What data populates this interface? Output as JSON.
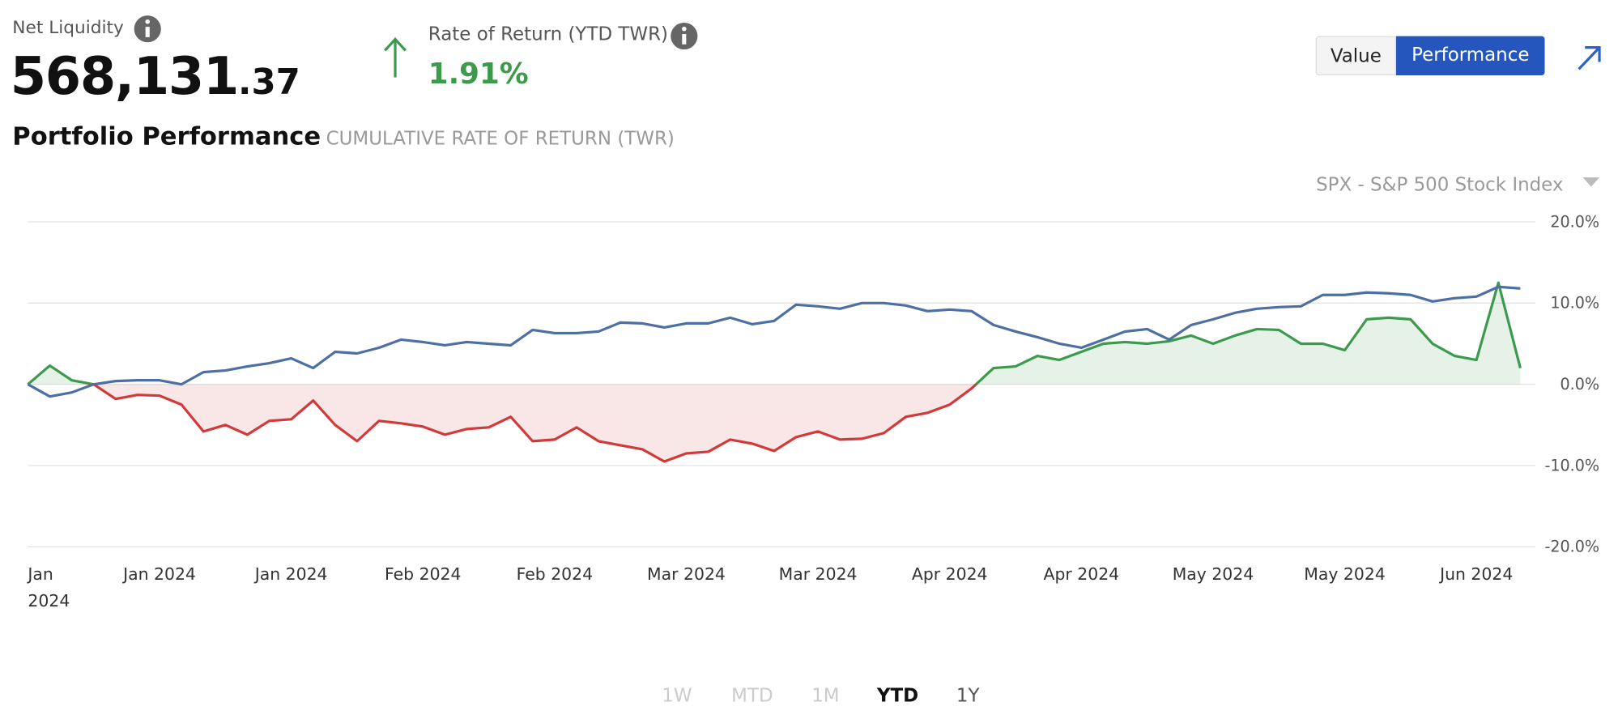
{
  "header": {
    "net_liquidity_label": "Net Liquidity",
    "net_liquidity_whole": "568,131",
    "net_liquidity_cents": ".37",
    "return_label": "Rate of Return (YTD TWR)",
    "return_value": "1.91%",
    "toggle": [
      "Value",
      "Performance"
    ],
    "toggle_active": 1,
    "title": "Portfolio Performance",
    "subtitle": "CUMULATIVE RATE OF RETURN (TWR)"
  },
  "range_tabs": {
    "items": [
      "1W",
      "MTD",
      "1M",
      "YTD",
      "1Y"
    ],
    "active": 3,
    "disabled": [
      0,
      1,
      2
    ]
  },
  "chart_data": {
    "type": "line",
    "categories": [
      "Jan 2024",
      null,
      null,
      null,
      null,
      null,
      "Jan 2024",
      null,
      null,
      null,
      null,
      null,
      "Jan 2024",
      null,
      null,
      null,
      null,
      null,
      "Feb 2024",
      null,
      null,
      null,
      null,
      null,
      "Feb 2024",
      null,
      null,
      null,
      null,
      null,
      "Mar 2024",
      null,
      null,
      null,
      null,
      null,
      "Mar 2024",
      null,
      null,
      null,
      null,
      null,
      "Apr 2024",
      null,
      null,
      null,
      null,
      null,
      "Apr 2024",
      null,
      null,
      null,
      null,
      null,
      "May 2024",
      null,
      null,
      null,
      null,
      null,
      "May 2024",
      null,
      null,
      null,
      null,
      null,
      "Jun 2024",
      null,
      null
    ],
    "series": [
      {
        "color": "#3c9a4c",
        "negative_color": "#d23a3a",
        "values": [
          0,
          2.3,
          0.5,
          0,
          -1.8,
          -1.3,
          -1.4,
          -2.5,
          -5.8,
          -5.0,
          -6.2,
          -4.5,
          -4.3,
          -2.0,
          -5.0,
          -7.0,
          -4.5,
          -4.8,
          -5.2,
          -6.2,
          -5.5,
          -5.3,
          -4.0,
          -7.0,
          -6.8,
          -5.3,
          -7.0,
          -7.5,
          -8.0,
          -9.5,
          -8.5,
          -8.3,
          -6.8,
          -7.3,
          -8.2,
          -6.5,
          -5.8,
          -6.8,
          -6.7,
          -6.0,
          -4.0,
          -3.5,
          -2.5,
          -0.5,
          2.0,
          2.2,
          3.5,
          3.0,
          4.0,
          5.0,
          5.2,
          5.0,
          5.3,
          6.0,
          5.0,
          6.0,
          6.8,
          6.7,
          5.0,
          5.0,
          4.2,
          8.0,
          8.2,
          8.0,
          5.0,
          3.5,
          3.0,
          12.5,
          2.0
        ]
      },
      {
        "name": "SPX - S&P 500 Stock Index",
        "color": "#4e6fa3",
        "values": [
          0,
          -1.5,
          -1.0,
          0,
          0.4,
          0.5,
          0.5,
          0,
          1.5,
          1.7,
          2.2,
          2.6,
          3.2,
          2.0,
          4.0,
          3.8,
          4.5,
          5.5,
          5.2,
          4.8,
          5.2,
          5.0,
          4.8,
          6.7,
          6.3,
          6.3,
          6.5,
          7.6,
          7.5,
          7.0,
          7.5,
          7.5,
          8.2,
          7.4,
          7.8,
          9.8,
          9.6,
          9.3,
          10.0,
          10.0,
          9.7,
          9.0,
          9.2,
          9.0,
          7.3,
          6.5,
          5.8,
          5.0,
          4.5,
          5.5,
          6.5,
          6.8,
          5.5,
          7.3,
          8.0,
          8.8,
          9.3,
          9.5,
          9.6,
          11.0,
          11.0,
          11.3,
          11.2,
          11.0,
          10.2,
          10.6,
          10.8,
          12.0,
          11.8
        ]
      }
    ],
    "ylim": [
      -20,
      20
    ],
    "yticks": [
      {
        "value": 20,
        "label": "20.0%"
      },
      {
        "value": 10,
        "label": "10.0%"
      },
      {
        "value": 0,
        "label": "0.0%"
      },
      {
        "value": -10,
        "label": "-10.0%"
      },
      {
        "value": -20,
        "label": "-20.0%"
      }
    ],
    "grid": true
  }
}
